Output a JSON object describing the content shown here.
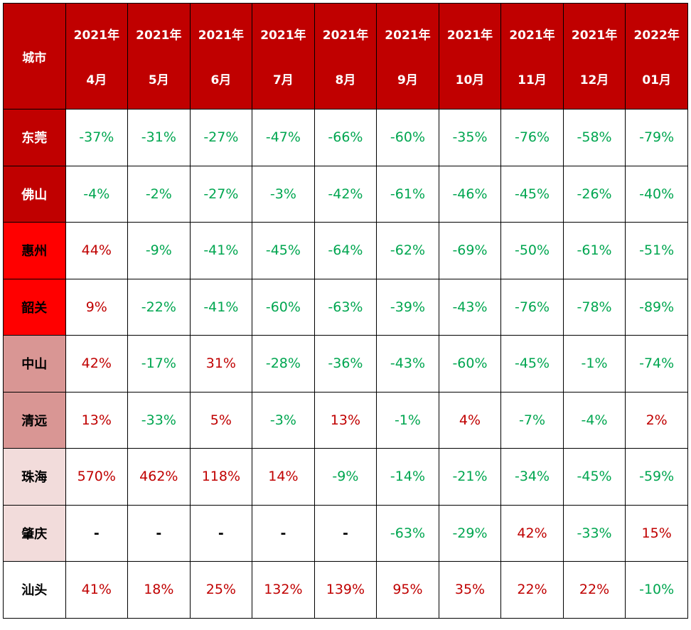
{
  "table": {
    "corner": "城市",
    "columns": [
      {
        "year": "2021年",
        "month": "4月"
      },
      {
        "year": "2021年",
        "month": "5月"
      },
      {
        "year": "2021年",
        "month": "6月"
      },
      {
        "year": "2021年",
        "month": "7月"
      },
      {
        "year": "2021年",
        "month": "8月"
      },
      {
        "year": "2021年",
        "month": "9月"
      },
      {
        "year": "2021年",
        "month": "10月"
      },
      {
        "year": "2021年",
        "month": "11月"
      },
      {
        "year": "2021年",
        "month": "12月"
      },
      {
        "year": "2022年",
        "month": "01月"
      }
    ],
    "rows": [
      {
        "city": "东莞",
        "values": [
          "-37%",
          "-31%",
          "-27%",
          "-47%",
          "-66%",
          "-60%",
          "-35%",
          "-76%",
          "-58%",
          "-79%"
        ]
      },
      {
        "city": "佛山",
        "values": [
          "-4%",
          "-2%",
          "-27%",
          "-3%",
          "-42%",
          "-61%",
          "-46%",
          "-45%",
          "-26%",
          "-40%"
        ]
      },
      {
        "city": "惠州",
        "values": [
          "44%",
          "-9%",
          "-41%",
          "-45%",
          "-64%",
          "-62%",
          "-69%",
          "-50%",
          "-61%",
          "-51%"
        ]
      },
      {
        "city": "韶关",
        "values": [
          "9%",
          "-22%",
          "-41%",
          "-60%",
          "-63%",
          "-39%",
          "-43%",
          "-76%",
          "-78%",
          "-89%"
        ]
      },
      {
        "city": "中山",
        "values": [
          "42%",
          "-17%",
          "31%",
          "-28%",
          "-36%",
          "-43%",
          "-60%",
          "-45%",
          "-1%",
          "-74%"
        ]
      },
      {
        "city": "清远",
        "values": [
          "13%",
          "-33%",
          "5%",
          "-3%",
          "13%",
          "-1%",
          "4%",
          "-7%",
          "-4%",
          "2%"
        ]
      },
      {
        "city": "珠海",
        "values": [
          "570%",
          "462%",
          "118%",
          "14%",
          "-9%",
          "-14%",
          "-21%",
          "-34%",
          "-45%",
          "-59%"
        ]
      },
      {
        "city": "肇庆",
        "values": [
          "-",
          "-",
          "-",
          "-",
          "-",
          "-63%",
          "-29%",
          "42%",
          "-33%",
          "15%"
        ]
      },
      {
        "city": "汕头",
        "values": [
          "41%",
          "18%",
          "25%",
          "132%",
          "139%",
          "95%",
          "35%",
          "22%",
          "22%",
          "-10%"
        ]
      }
    ]
  }
}
